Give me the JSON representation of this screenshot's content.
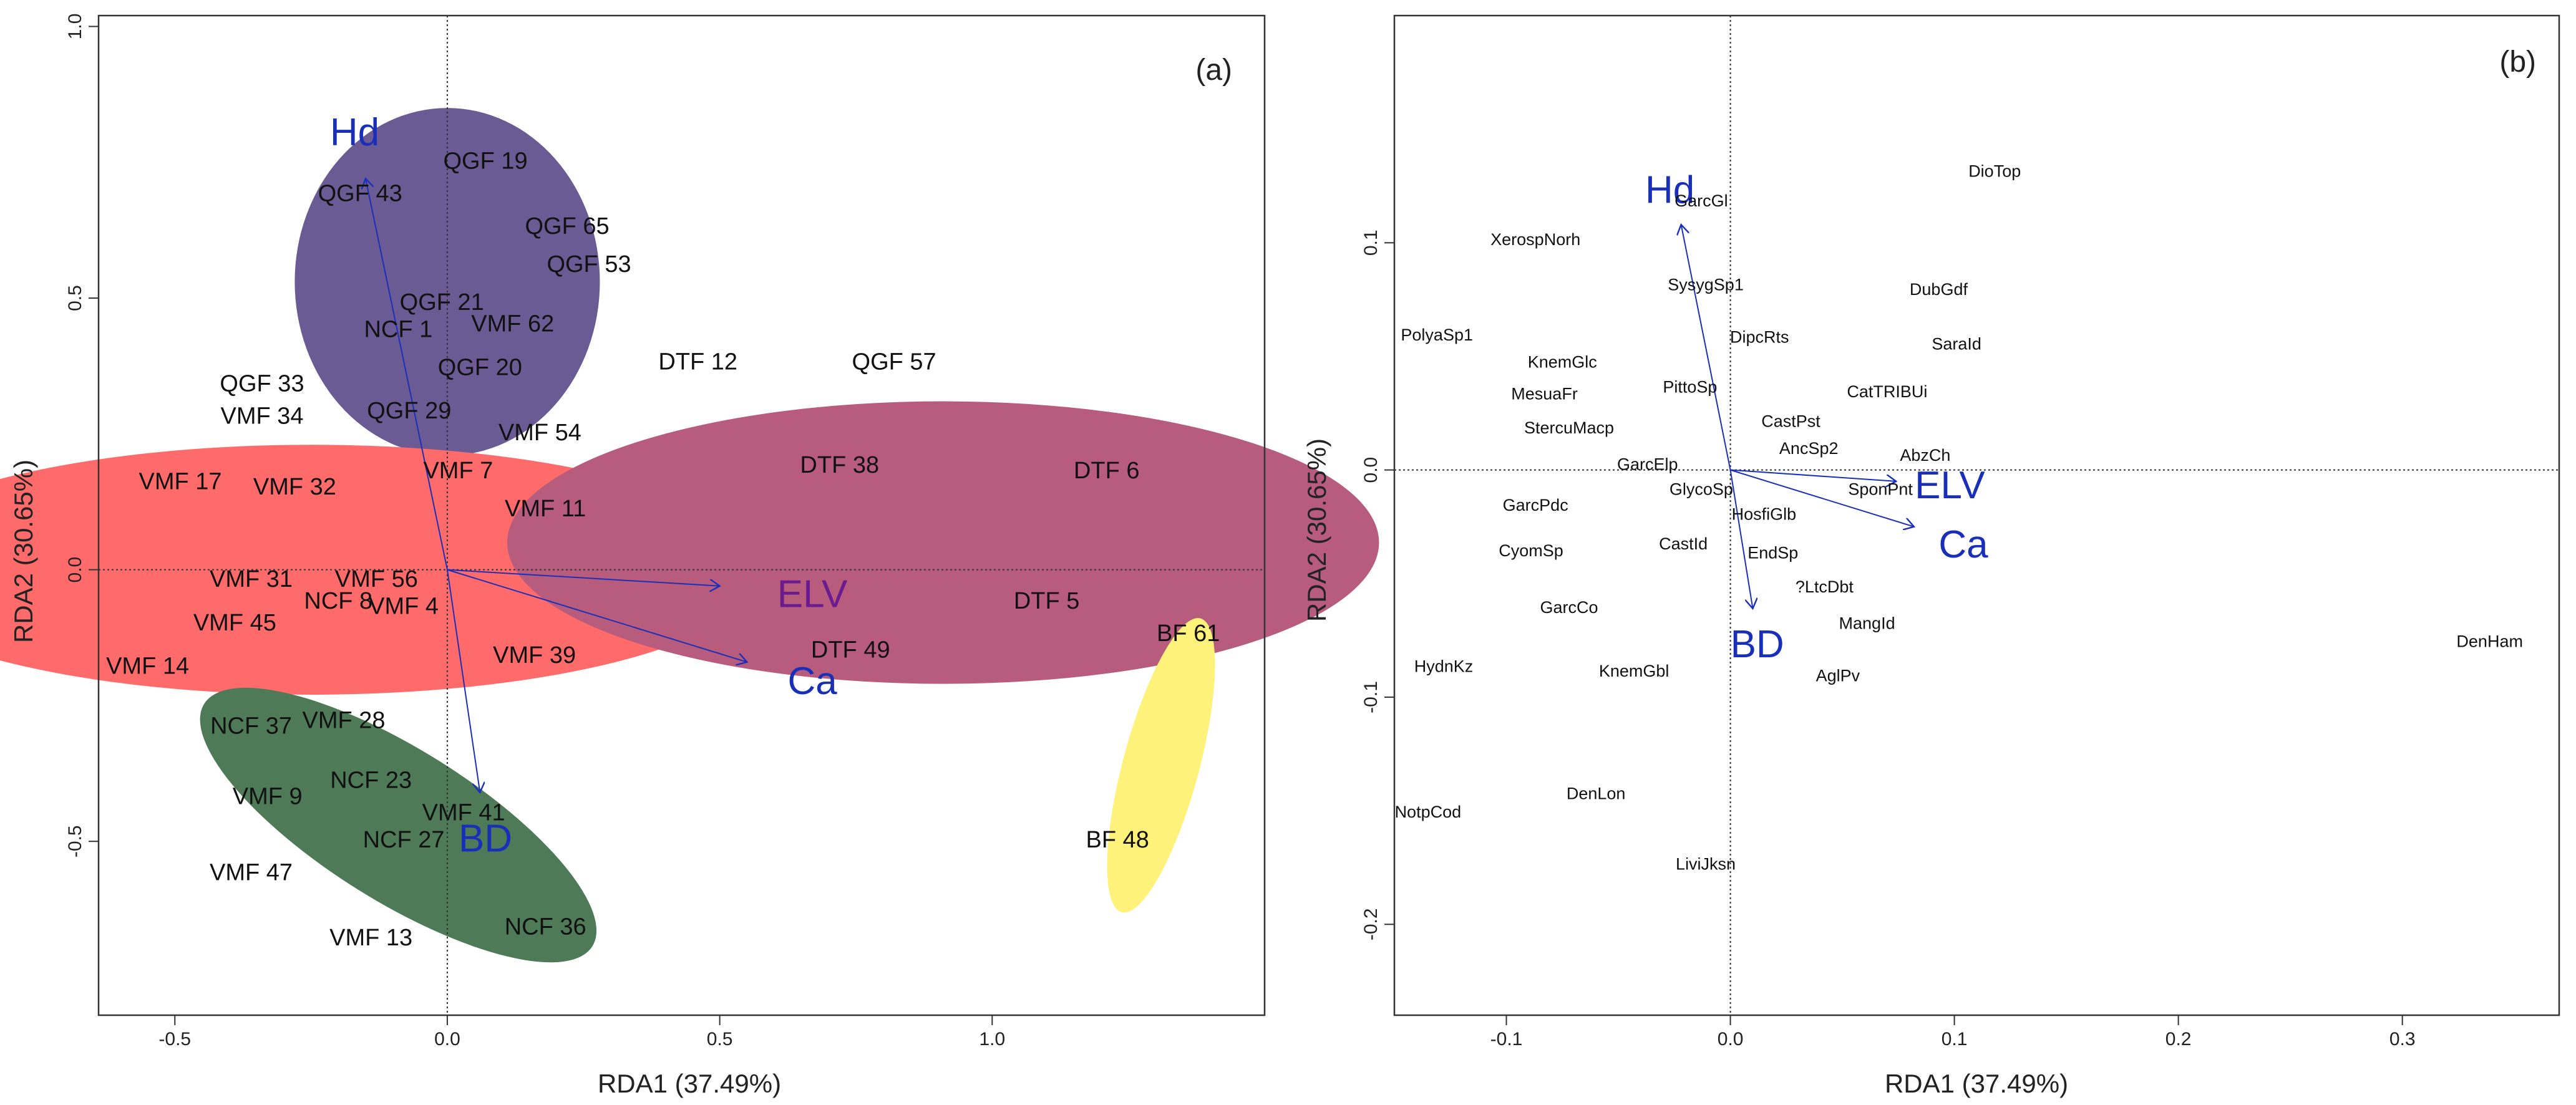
{
  "chart_data": [
    {
      "type": "scatter",
      "panel_label": "(a)",
      "xlabel": "RDA1 (37.49%)",
      "ylabel": "RDA2 (30.65%)",
      "xlim": [
        -0.64,
        1.5
      ],
      "ylim": [
        -0.82,
        1.02
      ],
      "xticks": [
        -0.5,
        0.0,
        0.5,
        1.0
      ],
      "xtick_labels": [
        "-0.5",
        "0.0",
        "0.5",
        "1.0"
      ],
      "yticks": [
        -0.5,
        0.0,
        0.5,
        1.0
      ],
      "ytick_labels": [
        "-0.5",
        "0.0",
        "0.5",
        "1.0"
      ],
      "ellipses": [
        {
          "name": "QGF group",
          "color": "#6b5b95",
          "cx": 0.0,
          "cy": 0.53,
          "rx": 0.28,
          "ry": 0.32,
          "rotate": 0
        },
        {
          "name": "VMF group",
          "color": "#ff6b6b",
          "cx": -0.25,
          "cy": 0.0,
          "rx": 0.83,
          "ry": 0.23,
          "rotate": 0
        },
        {
          "name": "DTF group",
          "color": "#b85c7d",
          "cx": 0.91,
          "cy": 0.05,
          "rx": 0.8,
          "ry": 0.26,
          "rotate": 0
        },
        {
          "name": "NCF group",
          "color": "#4f7a57",
          "cx": -0.09,
          "cy": -0.47,
          "rx": 0.42,
          "ry": 0.14,
          "rotate": 32
        },
        {
          "name": "BF group",
          "color": "#fff27a",
          "cx": 1.31,
          "cy": -0.36,
          "rx": 0.07,
          "ry": 0.28,
          "rotate": 15
        }
      ],
      "arrows": [
        {
          "label": "Hd",
          "x": -0.15,
          "y": 0.72,
          "lx": -0.17,
          "ly": 0.8,
          "color": "#1a2fb8"
        },
        {
          "label": "ELV",
          "x": 0.5,
          "y": -0.03,
          "lx": 0.67,
          "ly": -0.05,
          "color": "#6a1b8f"
        },
        {
          "label": "Ca",
          "x": 0.55,
          "y": -0.17,
          "lx": 0.67,
          "ly": -0.21,
          "color": "#1a2fb8"
        },
        {
          "label": "BD",
          "x": 0.06,
          "y": -0.41,
          "lx": 0.07,
          "ly": -0.5,
          "color": "#1a2fb8"
        }
      ],
      "points": [
        {
          "label": "QGF 19",
          "x": 0.07,
          "y": 0.75
        },
        {
          "label": "QGF 43",
          "x": -0.16,
          "y": 0.69
        },
        {
          "label": "QGF 65",
          "x": 0.22,
          "y": 0.63
        },
        {
          "label": "QGF 53",
          "x": 0.26,
          "y": 0.56
        },
        {
          "label": "QGF 21",
          "x": -0.01,
          "y": 0.49
        },
        {
          "label": "VMF 62",
          "x": 0.12,
          "y": 0.45
        },
        {
          "label": "NCF 1",
          "x": -0.09,
          "y": 0.44
        },
        {
          "label": "QGF 20",
          "x": 0.06,
          "y": 0.37
        },
        {
          "label": "QGF 29",
          "x": -0.07,
          "y": 0.29
        },
        {
          "label": "QGF 33",
          "x": -0.34,
          "y": 0.34
        },
        {
          "label": "VMF 34",
          "x": -0.34,
          "y": 0.28
        },
        {
          "label": "VMF 54",
          "x": 0.17,
          "y": 0.25
        },
        {
          "label": "DTF 12",
          "x": 0.46,
          "y": 0.38
        },
        {
          "label": "QGF 57",
          "x": 0.82,
          "y": 0.38
        },
        {
          "label": "VMF 17",
          "x": -0.49,
          "y": 0.16
        },
        {
          "label": "VMF 32",
          "x": -0.28,
          "y": 0.15
        },
        {
          "label": "VMF 7",
          "x": 0.02,
          "y": 0.18
        },
        {
          "label": "VMF 11",
          "x": 0.18,
          "y": 0.11
        },
        {
          "label": "DTF 38",
          "x": 0.72,
          "y": 0.19
        },
        {
          "label": "DTF 6",
          "x": 1.21,
          "y": 0.18
        },
        {
          "label": "VMF 31",
          "x": -0.36,
          "y": -0.02
        },
        {
          "label": "VMF 56",
          "x": -0.13,
          "y": -0.02
        },
        {
          "label": "NCF 8",
          "x": -0.2,
          "y": -0.06
        },
        {
          "label": "VMF 4",
          "x": -0.08,
          "y": -0.07
        },
        {
          "label": "VMF 45",
          "x": -0.39,
          "y": -0.1
        },
        {
          "label": "DTF 5",
          "x": 1.1,
          "y": -0.06
        },
        {
          "label": "VMF 14",
          "x": -0.55,
          "y": -0.18
        },
        {
          "label": "VMF 39",
          "x": 0.16,
          "y": -0.16
        },
        {
          "label": "DTF 49",
          "x": 0.74,
          "y": -0.15
        },
        {
          "label": "BF 61",
          "x": 1.36,
          "y": -0.12
        },
        {
          "label": "NCF 37",
          "x": -0.36,
          "y": -0.29
        },
        {
          "label": "VMF 28",
          "x": -0.19,
          "y": -0.28
        },
        {
          "label": "NCF 23",
          "x": -0.14,
          "y": -0.39
        },
        {
          "label": "VMF 9",
          "x": -0.33,
          "y": -0.42
        },
        {
          "label": "VMF 41",
          "x": 0.03,
          "y": -0.45
        },
        {
          "label": "NCF 27",
          "x": -0.08,
          "y": -0.5
        },
        {
          "label": "BF 48",
          "x": 1.23,
          "y": -0.5
        },
        {
          "label": "VMF 47",
          "x": -0.36,
          "y": -0.56
        },
        {
          "label": "NCF 36",
          "x": 0.18,
          "y": -0.66
        },
        {
          "label": "VMF 13",
          "x": -0.14,
          "y": -0.68
        }
      ]
    },
    {
      "type": "scatter",
      "panel_label": "(b)",
      "xlabel": "RDA1 (37.49%)",
      "ylabel": "RDA2 (30.65%)",
      "xlim": [
        -0.15,
        0.37
      ],
      "ylim": [
        -0.24,
        0.2
      ],
      "xticks": [
        -0.1,
        0.0,
        0.1,
        0.2,
        0.3
      ],
      "xtick_labels": [
        "-0.1",
        "0.0",
        "0.1",
        "0.2",
        "0.3"
      ],
      "yticks": [
        -0.2,
        -0.1,
        0.0,
        0.1
      ],
      "ytick_labels": [
        "-0.2",
        "-0.1",
        "0.0",
        "0.1"
      ],
      "arrows": [
        {
          "label": "Hd",
          "x": -0.022,
          "y": 0.108,
          "lx": -0.027,
          "ly": 0.122,
          "color": "#1a2fb8"
        },
        {
          "label": "ELV",
          "x": 0.074,
          "y": -0.005,
          "lx": 0.098,
          "ly": -0.008,
          "color": "#1a2fb8"
        },
        {
          "label": "Ca",
          "x": 0.082,
          "y": -0.025,
          "lx": 0.104,
          "ly": -0.034,
          "color": "#1a2fb8"
        },
        {
          "label": "BD",
          "x": 0.01,
          "y": -0.061,
          "lx": 0.012,
          "ly": -0.078,
          "color": "#1a2fb8"
        }
      ],
      "points": [
        {
          "label": "DioTop",
          "x": 0.118,
          "y": 0.131
        },
        {
          "label": "GarcGl",
          "x": -0.013,
          "y": 0.118
        },
        {
          "label": "XerospNorh",
          "x": -0.087,
          "y": 0.101
        },
        {
          "label": "SysygSp1",
          "x": -0.011,
          "y": 0.081
        },
        {
          "label": "DubGdf",
          "x": 0.093,
          "y": 0.079
        },
        {
          "label": "PolyaSp1",
          "x": -0.131,
          "y": 0.059
        },
        {
          "label": "DipcRts",
          "x": 0.013,
          "y": 0.058
        },
        {
          "label": "SaraId",
          "x": 0.101,
          "y": 0.055
        },
        {
          "label": "KnemGlc",
          "x": -0.075,
          "y": 0.047
        },
        {
          "label": "PittoSp",
          "x": -0.018,
          "y": 0.036
        },
        {
          "label": "MesuaFr",
          "x": -0.083,
          "y": 0.033
        },
        {
          "label": "CatTRIBUi",
          "x": 0.07,
          "y": 0.034
        },
        {
          "label": "CastPst",
          "x": 0.027,
          "y": 0.021
        },
        {
          "label": "StercuMacp",
          "x": -0.072,
          "y": 0.018
        },
        {
          "label": "AncSp2",
          "x": 0.035,
          "y": 0.009
        },
        {
          "label": "AbzCh",
          "x": 0.087,
          "y": 0.006
        },
        {
          "label": "GarcElp",
          "x": -0.037,
          "y": 0.002
        },
        {
          "label": "SponPnt",
          "x": 0.067,
          "y": -0.009
        },
        {
          "label": "GlycoSp",
          "x": -0.013,
          "y": -0.009
        },
        {
          "label": "GarcPdc",
          "x": -0.087,
          "y": -0.016
        },
        {
          "label": "HosfiGlb",
          "x": 0.015,
          "y": -0.02
        },
        {
          "label": "CastId",
          "x": -0.021,
          "y": -0.033
        },
        {
          "label": "CyomSp",
          "x": -0.089,
          "y": -0.036
        },
        {
          "label": "EndSp",
          "x": 0.019,
          "y": -0.037
        },
        {
          "label": "?LtcDbt",
          "x": 0.042,
          "y": -0.052
        },
        {
          "label": "GarcCo",
          "x": -0.072,
          "y": -0.061
        },
        {
          "label": "MangId",
          "x": 0.061,
          "y": -0.068
        },
        {
          "label": "DenHam",
          "x": 0.339,
          "y": -0.076
        },
        {
          "label": "HydnKz",
          "x": -0.128,
          "y": -0.087
        },
        {
          "label": "KnemGbl",
          "x": -0.043,
          "y": -0.089
        },
        {
          "label": "AglPv",
          "x": 0.048,
          "y": -0.091
        },
        {
          "label": "DenLon",
          "x": -0.06,
          "y": -0.143
        },
        {
          "label": "NotpCod",
          "x": -0.135,
          "y": -0.151
        },
        {
          "label": "LiviJksn",
          "x": -0.011,
          "y": -0.174
        }
      ]
    }
  ]
}
